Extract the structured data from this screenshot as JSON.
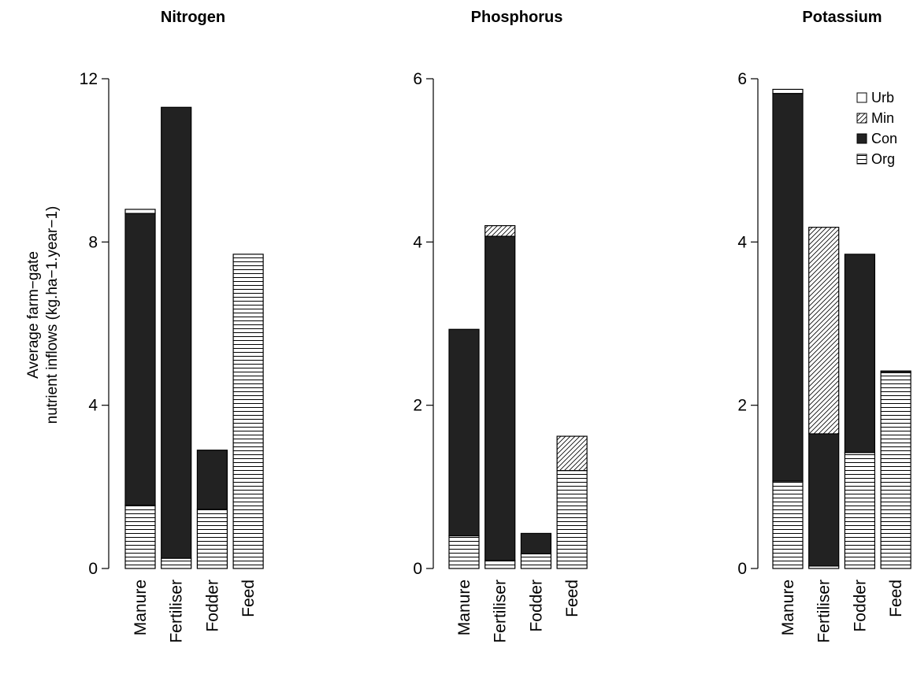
{
  "ylabel_lines": [
    "Average farm−gate",
    "nutrient inflows (kg.ha−1.year−1)"
  ],
  "legend": [
    {
      "key": "Urb",
      "label": "Urb"
    },
    {
      "key": "Min",
      "label": "Min"
    },
    {
      "key": "Con",
      "label": "Con"
    },
    {
      "key": "Org",
      "label": "Org"
    }
  ],
  "colors": {
    "Con": "#222222",
    "Urb": "#ffffff",
    "Min": "hatch-diagonal",
    "Org": "hatch-horizontal"
  },
  "chart_data": [
    {
      "type": "bar",
      "stacked": true,
      "title": "Nitrogen",
      "categories": [
        "Manure",
        "Fertiliser",
        "Fodder",
        "Feed"
      ],
      "ylim": [
        0,
        12
      ],
      "yticks": [
        "0",
        "4",
        "8",
        "12"
      ],
      "series": [
        {
          "name": "Org",
          "values": [
            1.55,
            0.25,
            1.45,
            7.7
          ]
        },
        {
          "name": "Con",
          "values": [
            7.15,
            11.05,
            1.45,
            0
          ]
        },
        {
          "name": "Min",
          "values": [
            0,
            0,
            0,
            0
          ]
        },
        {
          "name": "Urb",
          "values": [
            0.1,
            0,
            0,
            0
          ]
        }
      ]
    },
    {
      "type": "bar",
      "stacked": true,
      "title": "Phosphorus",
      "categories": [
        "Manure",
        "Fertiliser",
        "Fodder",
        "Feed"
      ],
      "ylim": [
        0,
        6
      ],
      "yticks": [
        "0",
        "2",
        "4",
        "6"
      ],
      "series": [
        {
          "name": "Org",
          "values": [
            0.4,
            0.1,
            0.18,
            1.2
          ]
        },
        {
          "name": "Con",
          "values": [
            2.53,
            3.97,
            0.25,
            0
          ]
        },
        {
          "name": "Min",
          "values": [
            0,
            0.13,
            0,
            0.42
          ]
        },
        {
          "name": "Urb",
          "values": [
            0,
            0,
            0,
            0
          ]
        }
      ]
    },
    {
      "type": "bar",
      "stacked": true,
      "title": "Potassium",
      "categories": [
        "Manure",
        "Fertiliser",
        "Fodder",
        "Feed"
      ],
      "ylim": [
        0,
        6
      ],
      "yticks": [
        "0",
        "2",
        "4",
        "6"
      ],
      "series": [
        {
          "name": "Org",
          "values": [
            1.07,
            0.03,
            1.42,
            2.4
          ]
        },
        {
          "name": "Con",
          "values": [
            4.75,
            1.62,
            2.43,
            0.02
          ]
        },
        {
          "name": "Min",
          "values": [
            0,
            2.53,
            0,
            0
          ]
        },
        {
          "name": "Urb",
          "values": [
            0.05,
            0,
            0,
            0
          ]
        }
      ]
    }
  ]
}
